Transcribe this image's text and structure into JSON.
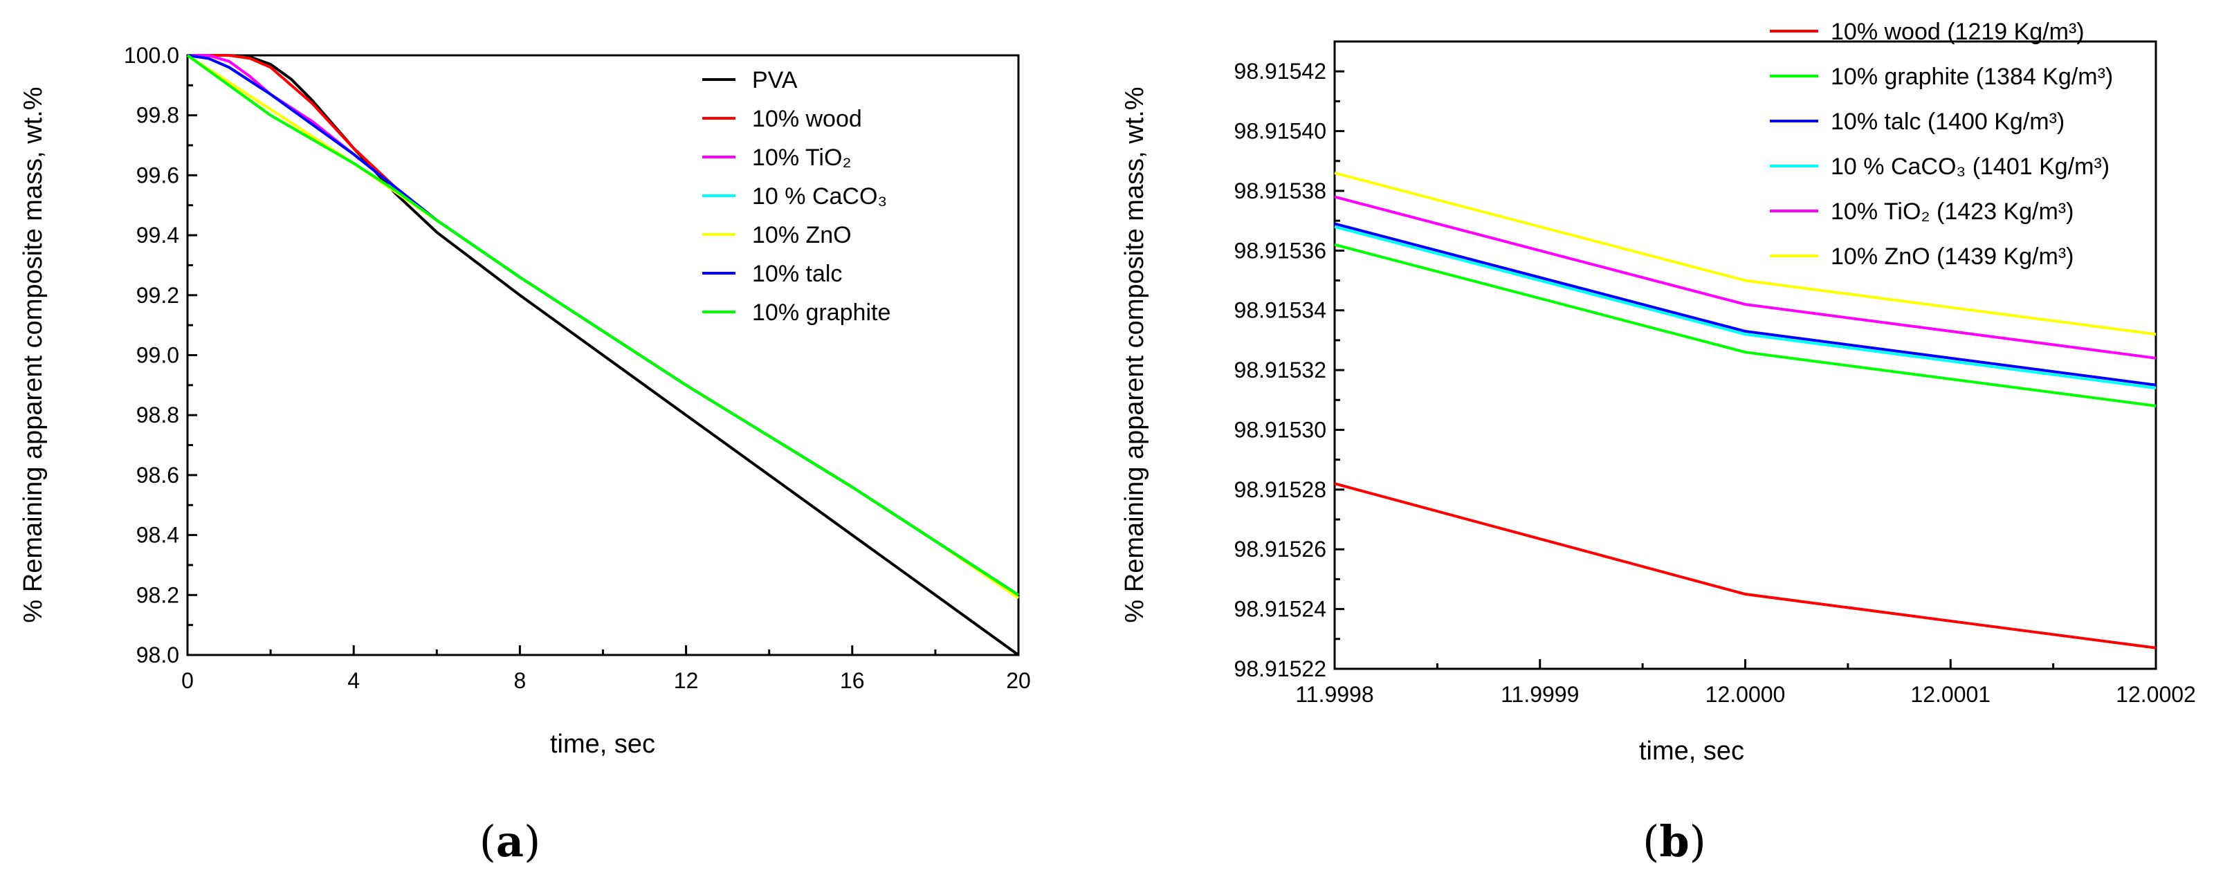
{
  "chart_data": [
    {
      "panel": "a",
      "type": "line",
      "xlabel": "time, sec",
      "ylabel": "% Remaining apparent composite mass, wt.%",
      "xlim": [
        0,
        20
      ],
      "ylim": [
        98.0,
        100.0
      ],
      "xticks": [
        "0",
        "4",
        "8",
        "12",
        "16",
        "20"
      ],
      "yticks": [
        "98.0",
        "98.2",
        "98.4",
        "98.6",
        "98.8",
        "99.0",
        "99.2",
        "99.4",
        "99.6",
        "99.8",
        "100.0"
      ],
      "legend_position": "top-right",
      "panel_label": "a",
      "series": [
        {
          "name": "PVA",
          "color": "#000000",
          "x": [
            0,
            1,
            1.5,
            2,
            2.5,
            3,
            4,
            5,
            6,
            8,
            10,
            12,
            14,
            16,
            18,
            20
          ],
          "y": [
            100.0,
            100.0,
            99.995,
            99.97,
            99.92,
            99.85,
            99.69,
            99.54,
            99.41,
            99.2,
            99.0,
            98.8,
            98.6,
            98.4,
            98.2,
            98.0
          ]
        },
        {
          "name": "10% wood",
          "color": "#ff0000",
          "x": [
            0,
            1,
            1.5,
            2,
            2.5,
            3,
            4,
            5,
            6,
            8,
            10,
            12,
            14,
            16,
            18,
            20
          ],
          "y": [
            100.0,
            100.0,
            99.99,
            99.96,
            99.9,
            99.84,
            99.69,
            99.56,
            99.45,
            99.26,
            99.08,
            98.9,
            98.73,
            98.56,
            98.38,
            98.2
          ]
        },
        {
          "name": "10% TiO₂",
          "sup_sub": "TiO2",
          "color": "#ff00ff",
          "x": [
            0,
            0.5,
            1,
            1.5,
            2,
            3,
            4,
            5,
            6,
            8,
            10,
            12,
            14,
            16,
            18,
            20
          ],
          "y": [
            100.0,
            100.0,
            99.98,
            99.93,
            99.87,
            99.78,
            99.67,
            99.56,
            99.45,
            99.26,
            99.08,
            98.9,
            98.73,
            98.56,
            98.38,
            98.2
          ]
        },
        {
          "name": "10 % CaCO₃",
          "color": "#00ffff",
          "x": [
            0,
            0.5,
            1,
            2,
            3,
            4,
            5,
            6,
            8,
            10,
            12,
            14,
            16,
            18,
            20
          ],
          "y": [
            100.0,
            99.99,
            99.96,
            99.87,
            99.77,
            99.67,
            99.56,
            99.45,
            99.26,
            99.08,
            98.9,
            98.73,
            98.56,
            98.38,
            98.2
          ]
        },
        {
          "name": "10% ZnO",
          "color": "#ffff00",
          "x": [
            0,
            2,
            4,
            6,
            8,
            10,
            12,
            14,
            16,
            18,
            20
          ],
          "y": [
            100.0,
            99.82,
            99.64,
            99.45,
            99.26,
            99.08,
            98.9,
            98.73,
            98.56,
            98.38,
            98.19
          ]
        },
        {
          "name": "10% talc",
          "color": "#0000ff",
          "x": [
            0,
            0.5,
            1,
            2,
            3,
            4,
            5,
            6,
            8,
            10,
            12,
            14,
            16,
            18,
            20
          ],
          "y": [
            100.0,
            99.99,
            99.96,
            99.87,
            99.77,
            99.67,
            99.56,
            99.45,
            99.26,
            99.08,
            98.9,
            98.73,
            98.56,
            98.38,
            98.2
          ]
        },
        {
          "name": "10% graphite",
          "color": "#00ff00",
          "x": [
            0,
            1,
            2,
            3,
            4,
            5,
            6,
            8,
            10,
            12,
            14,
            16,
            18,
            20
          ],
          "y": [
            100.0,
            99.9,
            99.8,
            99.72,
            99.64,
            99.55,
            99.45,
            99.26,
            99.08,
            98.9,
            98.73,
            98.56,
            98.38,
            98.2
          ]
        }
      ]
    },
    {
      "panel": "b",
      "type": "line",
      "xlabel": "time, sec",
      "ylabel": "% Remaining apparent composite mass, wt.%",
      "xlim": [
        11.9998,
        12.0002
      ],
      "ylim": [
        98.91522,
        98.91543
      ],
      "xticks": [
        "11.9998",
        "11.9999",
        "12.0000",
        "12.0001",
        "12.0002"
      ],
      "yticks": [
        "98.91522",
        "98.91524",
        "98.91526",
        "98.91528",
        "98.91530",
        "98.91532",
        "98.91534",
        "98.91536",
        "98.91538",
        "98.91540",
        "98.91542"
      ],
      "legend_position": "top-right",
      "panel_label": "b",
      "series": [
        {
          "name": "10% wood (1219 Kg/m³)",
          "color": "#ff0000",
          "x": [
            11.9998,
            12.0,
            12.0002
          ],
          "y": [
            98.915282,
            98.915245,
            98.915227
          ]
        },
        {
          "name": "10% graphite (1384 Kg/m³)",
          "color": "#00ff00",
          "x": [
            11.9998,
            12.0,
            12.0002
          ],
          "y": [
            98.915362,
            98.915326,
            98.915308
          ]
        },
        {
          "name": "10% talc (1400 Kg/m³)",
          "color": "#0000ff",
          "x": [
            11.9998,
            12.0,
            12.0002
          ],
          "y": [
            98.915369,
            98.915333,
            98.915315
          ]
        },
        {
          "name": "10 % CaCO₃ (1401 Kg/m³)",
          "color": "#00ffff",
          "x": [
            11.9998,
            12.0,
            12.0002
          ],
          "y": [
            98.915368,
            98.915332,
            98.915314
          ]
        },
        {
          "name": "10% TiO₂ (1423 Kg/m³)",
          "color": "#ff00ff",
          "x": [
            11.9998,
            12.0,
            12.0002
          ],
          "y": [
            98.915378,
            98.915342,
            98.915324
          ]
        },
        {
          "name": "10% ZnO (1439 Kg/m³)",
          "color": "#ffff00",
          "x": [
            11.9998,
            12.0,
            12.0002
          ],
          "y": [
            98.915386,
            98.91535,
            98.915332
          ]
        }
      ]
    }
  ]
}
